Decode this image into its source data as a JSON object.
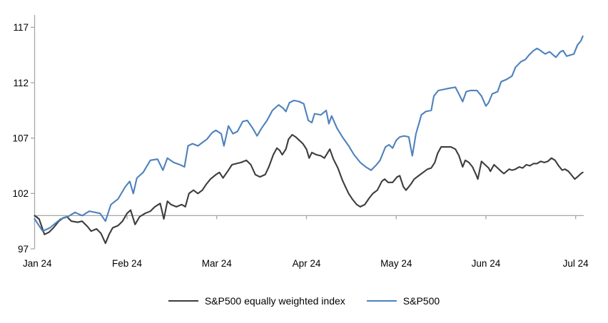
{
  "chart_data": {
    "type": "line",
    "title": "",
    "x_axis": {
      "range": [
        -0.03,
        6.09
      ],
      "ticks": [
        0,
        1,
        2,
        3,
        4,
        5,
        6
      ],
      "tick_labels": [
        "Jan 24",
        "Feb 24",
        "Mar 24",
        "Apr 24",
        "May 24",
        "Jun 24",
        "Jul 24"
      ]
    },
    "y_axis": {
      "range": [
        97,
        118.1
      ],
      "ticks": [
        97,
        102,
        107,
        112,
        117
      ],
      "baseline": 100
    },
    "grid": "none",
    "legend_position": "bottom-center",
    "series": [
      {
        "name": "S&P500 equally weighted index",
        "color": "#3d3d3d",
        "points": [
          [
            -0.03,
            100.0
          ],
          [
            0.02,
            99.7
          ],
          [
            0.08,
            98.3
          ],
          [
            0.13,
            98.5
          ],
          [
            0.18,
            98.9
          ],
          [
            0.24,
            99.5
          ],
          [
            0.29,
            99.8
          ],
          [
            0.33,
            99.9
          ],
          [
            0.38,
            99.5
          ],
          [
            0.45,
            99.4
          ],
          [
            0.5,
            99.5
          ],
          [
            0.56,
            99.0
          ],
          [
            0.6,
            98.6
          ],
          [
            0.66,
            98.8
          ],
          [
            0.71,
            98.4
          ],
          [
            0.76,
            97.5
          ],
          [
            0.8,
            98.3
          ],
          [
            0.84,
            98.9
          ],
          [
            0.9,
            99.1
          ],
          [
            0.95,
            99.5
          ],
          [
            1.0,
            100.2
          ],
          [
            1.04,
            100.5
          ],
          [
            1.09,
            99.2
          ],
          [
            1.14,
            99.9
          ],
          [
            1.2,
            100.2
          ],
          [
            1.26,
            100.4
          ],
          [
            1.31,
            100.8
          ],
          [
            1.37,
            101.1
          ],
          [
            1.41,
            99.7
          ],
          [
            1.45,
            101.3
          ],
          [
            1.49,
            101.0
          ],
          [
            1.55,
            100.8
          ],
          [
            1.61,
            101.0
          ],
          [
            1.65,
            100.8
          ],
          [
            1.69,
            102.0
          ],
          [
            1.74,
            102.3
          ],
          [
            1.79,
            102.0
          ],
          [
            1.84,
            102.3
          ],
          [
            1.88,
            102.8
          ],
          [
            1.93,
            103.3
          ],
          [
            1.99,
            103.7
          ],
          [
            2.03,
            103.9
          ],
          [
            2.07,
            103.4
          ],
          [
            2.13,
            104.1
          ],
          [
            2.17,
            104.6
          ],
          [
            2.22,
            104.7
          ],
          [
            2.27,
            104.8
          ],
          [
            2.33,
            105.0
          ],
          [
            2.38,
            104.6
          ],
          [
            2.43,
            103.7
          ],
          [
            2.48,
            103.5
          ],
          [
            2.54,
            103.7
          ],
          [
            2.58,
            104.4
          ],
          [
            2.63,
            105.5
          ],
          [
            2.67,
            106.1
          ],
          [
            2.7,
            105.9
          ],
          [
            2.73,
            105.5
          ],
          [
            2.77,
            106.0
          ],
          [
            2.8,
            106.9
          ],
          [
            2.84,
            107.3
          ],
          [
            2.88,
            107.1
          ],
          [
            2.92,
            106.8
          ],
          [
            2.96,
            106.5
          ],
          [
            3.0,
            106.0
          ],
          [
            3.03,
            105.2
          ],
          [
            3.06,
            105.7
          ],
          [
            3.11,
            105.5
          ],
          [
            3.16,
            105.4
          ],
          [
            3.2,
            105.2
          ],
          [
            3.26,
            106.0
          ],
          [
            3.3,
            105.1
          ],
          [
            3.35,
            104.3
          ],
          [
            3.4,
            103.2
          ],
          [
            3.44,
            102.5
          ],
          [
            3.47,
            102.0
          ],
          [
            3.51,
            101.5
          ],
          [
            3.56,
            101.0
          ],
          [
            3.6,
            100.8
          ],
          [
            3.65,
            101.0
          ],
          [
            3.7,
            101.6
          ],
          [
            3.74,
            102.0
          ],
          [
            3.79,
            102.3
          ],
          [
            3.84,
            103.1
          ],
          [
            3.87,
            103.3
          ],
          [
            3.91,
            103.0
          ],
          [
            3.96,
            103.0
          ],
          [
            4.01,
            103.5
          ],
          [
            4.04,
            103.6
          ],
          [
            4.08,
            102.6
          ],
          [
            4.11,
            102.3
          ],
          [
            4.16,
            102.8
          ],
          [
            4.2,
            103.3
          ],
          [
            4.25,
            103.6
          ],
          [
            4.3,
            103.9
          ],
          [
            4.35,
            104.2
          ],
          [
            4.39,
            104.3
          ],
          [
            4.43,
            104.8
          ],
          [
            4.46,
            105.6
          ],
          [
            4.5,
            106.2
          ],
          [
            4.55,
            106.2
          ],
          [
            4.61,
            106.2
          ],
          [
            4.66,
            106.0
          ],
          [
            4.7,
            105.4
          ],
          [
            4.74,
            104.4
          ],
          [
            4.77,
            105.0
          ],
          [
            4.81,
            104.8
          ],
          [
            4.85,
            104.4
          ],
          [
            4.89,
            103.7
          ],
          [
            4.91,
            103.3
          ],
          [
            4.95,
            104.9
          ],
          [
            4.99,
            104.6
          ],
          [
            5.03,
            104.3
          ],
          [
            5.05,
            104.0
          ],
          [
            5.09,
            104.6
          ],
          [
            5.13,
            104.3
          ],
          [
            5.17,
            104.0
          ],
          [
            5.2,
            103.8
          ],
          [
            5.23,
            104.0
          ],
          [
            5.26,
            104.2
          ],
          [
            5.29,
            104.1
          ],
          [
            5.33,
            104.2
          ],
          [
            5.37,
            104.4
          ],
          [
            5.41,
            104.3
          ],
          [
            5.45,
            104.6
          ],
          [
            5.49,
            104.5
          ],
          [
            5.53,
            104.7
          ],
          [
            5.57,
            104.7
          ],
          [
            5.61,
            104.9
          ],
          [
            5.65,
            104.8
          ],
          [
            5.69,
            104.9
          ],
          [
            5.73,
            105.2
          ],
          [
            5.77,
            105.0
          ],
          [
            5.81,
            104.5
          ],
          [
            5.85,
            104.1
          ],
          [
            5.88,
            104.2
          ],
          [
            5.92,
            104.0
          ],
          [
            5.96,
            103.6
          ],
          [
            5.99,
            103.3
          ],
          [
            6.02,
            103.5
          ],
          [
            6.06,
            103.8
          ],
          [
            6.08,
            103.9
          ]
        ]
      },
      {
        "name": "S&P500",
        "color": "#4e81bd",
        "points": [
          [
            -0.03,
            99.7
          ],
          [
            0.06,
            98.6
          ],
          [
            0.14,
            98.9
          ],
          [
            0.26,
            99.7
          ],
          [
            0.34,
            99.9
          ],
          [
            0.42,
            100.3
          ],
          [
            0.5,
            100.0
          ],
          [
            0.58,
            100.4
          ],
          [
            0.7,
            100.2
          ],
          [
            0.76,
            99.5
          ],
          [
            0.82,
            101.0
          ],
          [
            0.9,
            101.5
          ],
          [
            0.98,
            102.6
          ],
          [
            1.03,
            103.1
          ],
          [
            1.07,
            102.0
          ],
          [
            1.11,
            103.4
          ],
          [
            1.18,
            103.9
          ],
          [
            1.26,
            105.0
          ],
          [
            1.34,
            105.1
          ],
          [
            1.4,
            104.1
          ],
          [
            1.45,
            105.2
          ],
          [
            1.52,
            104.8
          ],
          [
            1.59,
            104.6
          ],
          [
            1.64,
            104.4
          ],
          [
            1.68,
            106.3
          ],
          [
            1.73,
            106.5
          ],
          [
            1.79,
            106.3
          ],
          [
            1.84,
            106.6
          ],
          [
            1.89,
            106.9
          ],
          [
            1.95,
            107.5
          ],
          [
            1.99,
            107.7
          ],
          [
            2.05,
            107.4
          ],
          [
            2.08,
            106.3
          ],
          [
            2.13,
            108.1
          ],
          [
            2.18,
            107.4
          ],
          [
            2.23,
            107.6
          ],
          [
            2.29,
            108.5
          ],
          [
            2.34,
            108.6
          ],
          [
            2.4,
            107.9
          ],
          [
            2.45,
            107.2
          ],
          [
            2.5,
            107.9
          ],
          [
            2.56,
            108.6
          ],
          [
            2.62,
            109.5
          ],
          [
            2.69,
            110.0
          ],
          [
            2.74,
            109.7
          ],
          [
            2.77,
            109.4
          ],
          [
            2.81,
            110.2
          ],
          [
            2.86,
            110.4
          ],
          [
            2.92,
            110.3
          ],
          [
            2.97,
            110.1
          ],
          [
            3.02,
            108.6
          ],
          [
            3.06,
            108.4
          ],
          [
            3.09,
            109.2
          ],
          [
            3.16,
            109.1
          ],
          [
            3.22,
            109.5
          ],
          [
            3.25,
            108.3
          ],
          [
            3.28,
            109.0
          ],
          [
            3.34,
            107.9
          ],
          [
            3.4,
            107.1
          ],
          [
            3.47,
            106.3
          ],
          [
            3.53,
            105.5
          ],
          [
            3.6,
            104.8
          ],
          [
            3.66,
            104.4
          ],
          [
            3.72,
            104.1
          ],
          [
            3.78,
            104.6
          ],
          [
            3.82,
            105.0
          ],
          [
            3.88,
            106.2
          ],
          [
            3.92,
            106.4
          ],
          [
            3.96,
            106.1
          ],
          [
            4.0,
            106.8
          ],
          [
            4.04,
            107.1
          ],
          [
            4.09,
            107.2
          ],
          [
            4.14,
            107.1
          ],
          [
            4.18,
            105.4
          ],
          [
            4.22,
            107.4
          ],
          [
            4.26,
            108.5
          ],
          [
            4.28,
            109.1
          ],
          [
            4.33,
            109.4
          ],
          [
            4.39,
            109.5
          ],
          [
            4.42,
            110.8
          ],
          [
            4.47,
            111.3
          ],
          [
            4.53,
            111.4
          ],
          [
            4.59,
            111.5
          ],
          [
            4.66,
            111.6
          ],
          [
            4.71,
            110.8
          ],
          [
            4.74,
            110.3
          ],
          [
            4.78,
            111.2
          ],
          [
            4.83,
            111.3
          ],
          [
            4.9,
            111.3
          ],
          [
            4.95,
            110.8
          ],
          [
            5.0,
            109.9
          ],
          [
            5.03,
            110.2
          ],
          [
            5.07,
            111.0
          ],
          [
            5.13,
            111.2
          ],
          [
            5.17,
            112.1
          ],
          [
            5.23,
            112.3
          ],
          [
            5.29,
            112.6
          ],
          [
            5.33,
            113.4
          ],
          [
            5.39,
            113.9
          ],
          [
            5.44,
            114.1
          ],
          [
            5.48,
            114.5
          ],
          [
            5.53,
            114.9
          ],
          [
            5.57,
            115.1
          ],
          [
            5.61,
            114.9
          ],
          [
            5.66,
            114.6
          ],
          [
            5.71,
            114.8
          ],
          [
            5.75,
            114.5
          ],
          [
            5.78,
            114.3
          ],
          [
            5.83,
            114.8
          ],
          [
            5.86,
            114.9
          ],
          [
            5.9,
            114.4
          ],
          [
            5.94,
            114.5
          ],
          [
            5.98,
            114.6
          ],
          [
            6.02,
            115.4
          ],
          [
            6.06,
            115.8
          ],
          [
            6.08,
            116.2
          ]
        ]
      }
    ]
  },
  "colors": {
    "axis": "#a6a6a6",
    "text": "#000000",
    "background": "#ffffff"
  }
}
